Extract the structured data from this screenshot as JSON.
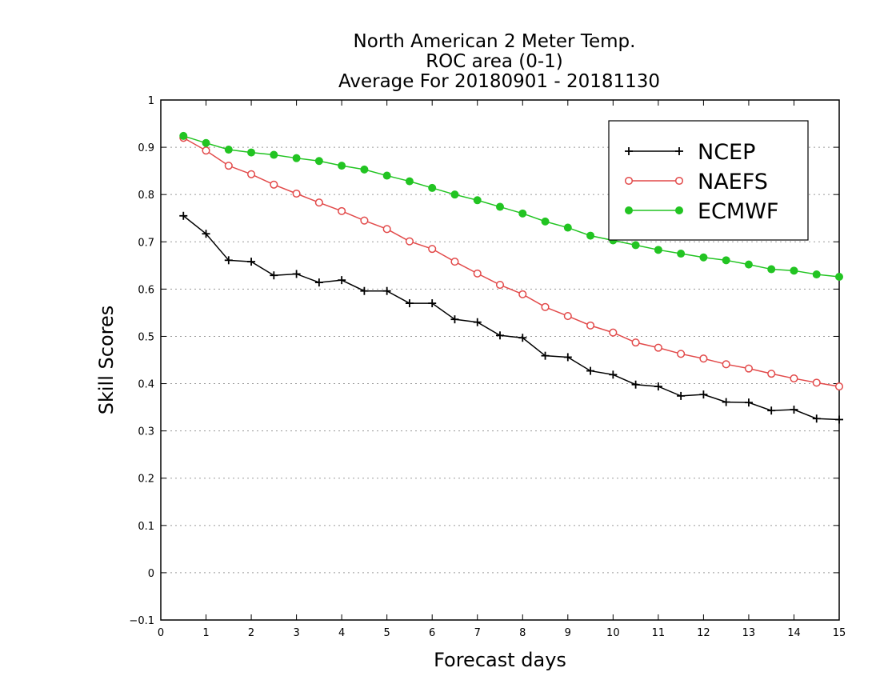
{
  "chart_data": {
    "type": "line",
    "title_lines": [
      "North American 2 Meter Temp.",
      "ROC area (0-1)",
      "Average For 20180901 - 20181130"
    ],
    "xlabel": "Forecast days",
    "ylabel": "Skill Scores",
    "xlim": [
      0,
      15
    ],
    "ylim": [
      -0.1,
      1
    ],
    "x_ticks": [
      "0",
      "1",
      "2",
      "3",
      "4",
      "5",
      "6",
      "7",
      "8",
      "9",
      "10",
      "11",
      "12",
      "13",
      "14",
      "15"
    ],
    "y_ticks": [
      "−0.1",
      "0",
      "0.1",
      "0.2",
      "0.3",
      "0.4",
      "0.5",
      "0.6",
      "0.7",
      "0.8",
      "0.9",
      "1"
    ],
    "grid": "horizontal dotted",
    "legend_position": "top-right",
    "x": [
      0.5,
      1,
      1.5,
      2,
      2.5,
      3,
      3.5,
      4,
      4.5,
      5,
      5.5,
      6,
      6.5,
      7,
      7.5,
      8,
      8.5,
      9,
      9.5,
      10,
      10.5,
      11,
      11.5,
      12,
      12.5,
      13,
      13.5,
      14,
      14.5,
      15
    ],
    "series": [
      {
        "name": "NCEP",
        "color": "#000000",
        "marker": "plus",
        "values": [
          0.755,
          0.717,
          0.661,
          0.658,
          0.629,
          0.632,
          0.614,
          0.619,
          0.596,
          0.596,
          0.57,
          0.57,
          0.536,
          0.53,
          0.502,
          0.497,
          0.459,
          0.456,
          0.427,
          0.419,
          0.398,
          0.394,
          0.374,
          0.377,
          0.361,
          0.36,
          0.343,
          0.345,
          0.326,
          0.324
        ]
      },
      {
        "name": "NAEFS",
        "color": "#e24a4a",
        "marker": "open-circle",
        "values": [
          0.92,
          0.893,
          0.861,
          0.843,
          0.821,
          0.802,
          0.783,
          0.765,
          0.745,
          0.727,
          0.701,
          0.685,
          0.658,
          0.633,
          0.609,
          0.589,
          0.562,
          0.543,
          0.523,
          0.508,
          0.487,
          0.476,
          0.463,
          0.453,
          0.441,
          0.432,
          0.421,
          0.411,
          0.402,
          0.394
        ]
      },
      {
        "name": "ECMWF",
        "color": "#22c422",
        "marker": "filled-circle",
        "values": [
          0.924,
          0.909,
          0.895,
          0.889,
          0.884,
          0.877,
          0.871,
          0.861,
          0.853,
          0.84,
          0.828,
          0.814,
          0.8,
          0.788,
          0.774,
          0.76,
          0.743,
          0.73,
          0.713,
          0.703,
          0.693,
          0.683,
          0.675,
          0.667,
          0.661,
          0.652,
          0.642,
          0.639,
          0.631,
          0.626
        ]
      }
    ]
  }
}
